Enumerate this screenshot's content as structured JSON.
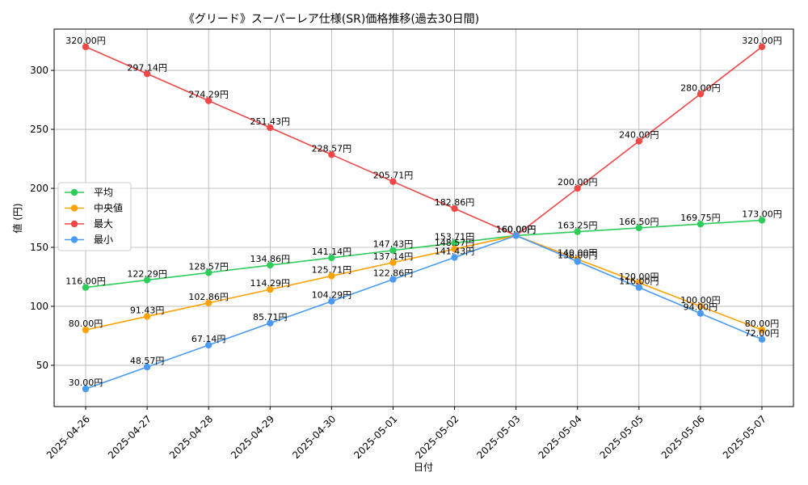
{
  "chart_data": {
    "type": "line",
    "title": "《グリード》スーパーレア仕様(SR)価格推移(過去30日間)",
    "xlabel": "日付",
    "ylabel": "値 (円)",
    "categories": [
      "2025-04-26",
      "2025-04-27",
      "2025-04-28",
      "2025-04-29",
      "2025-04-30",
      "2025-05-01",
      "2025-05-02",
      "2025-05-03",
      "2025-05-04",
      "2025-05-05",
      "2025-05-06",
      "2025-05-07"
    ],
    "ylim": [
      15,
      335
    ],
    "yticks": [
      50,
      100,
      150,
      200,
      250,
      300
    ],
    "grid": true,
    "legend_position": "center-left",
    "value_suffix": "円",
    "series": [
      {
        "name": "平均",
        "color": "#2ecc5a",
        "values": [
          116.0,
          122.29,
          128.57,
          134.86,
          141.14,
          147.43,
          153.71,
          160.0,
          163.25,
          166.5,
          169.75,
          173.0
        ]
      },
      {
        "name": "中央値",
        "color": "#ffa200",
        "values": [
          80.0,
          91.43,
          102.86,
          114.29,
          125.71,
          137.14,
          148.57,
          160.0,
          140.0,
          120.0,
          100.0,
          80.0
        ]
      },
      {
        "name": "最大",
        "color": "#f04747",
        "values": [
          320.0,
          297.14,
          274.29,
          251.43,
          228.57,
          205.71,
          182.86,
          160.0,
          200.0,
          240.0,
          280.0,
          320.0
        ]
      },
      {
        "name": "最小",
        "color": "#4a9af5",
        "values": [
          30.0,
          48.57,
          67.14,
          85.71,
          104.29,
          122.86,
          141.43,
          160.0,
          138.0,
          116.0,
          94.0,
          72.0
        ]
      }
    ]
  }
}
